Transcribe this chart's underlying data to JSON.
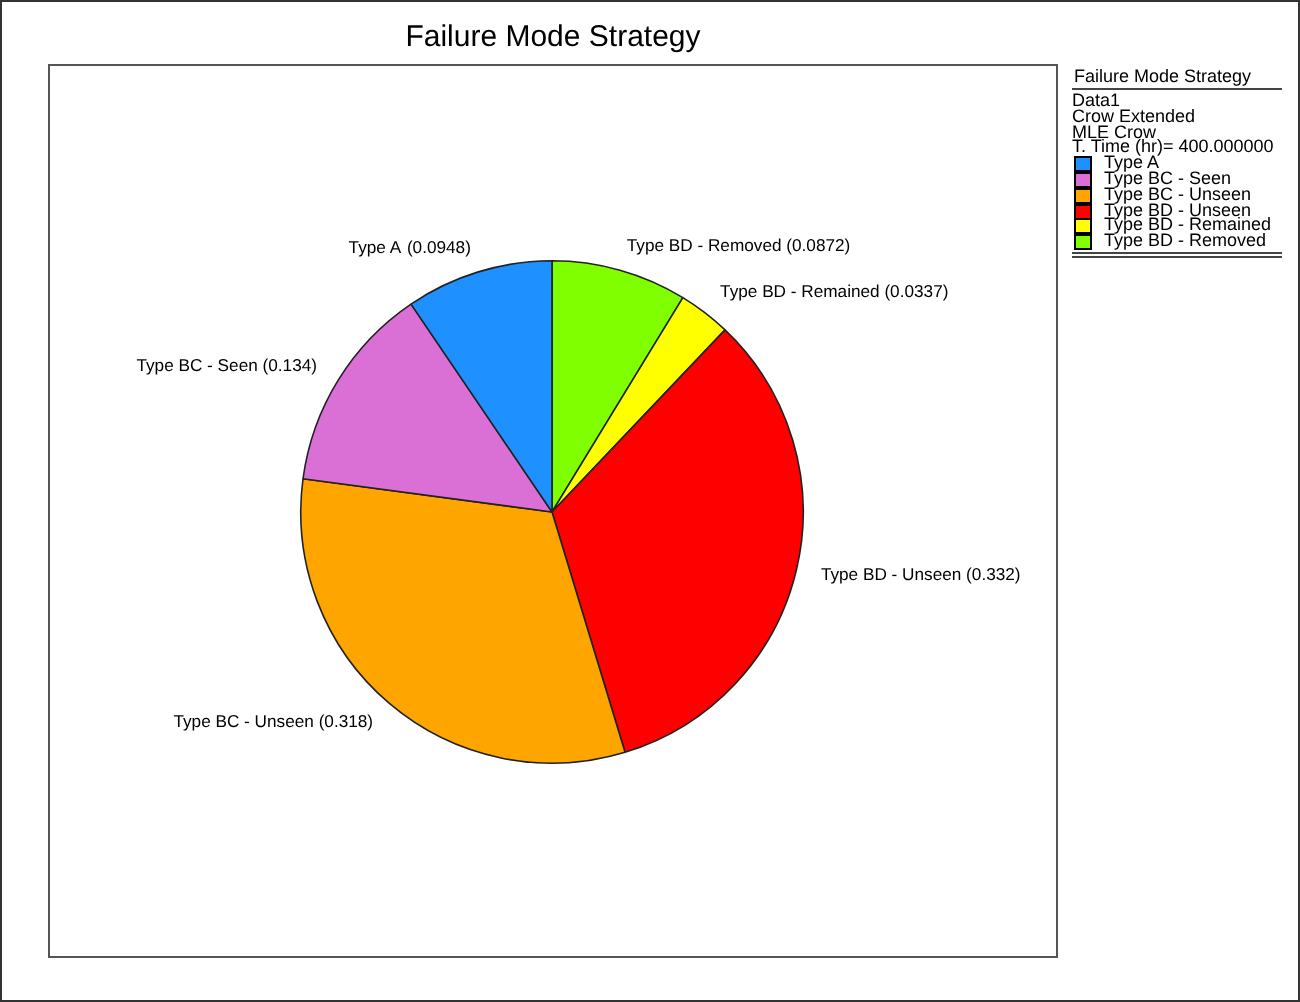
{
  "chart_data": {
    "type": "pie",
    "title": "Failure Mode Strategy",
    "legend_title": "Failure Mode Strategy",
    "annotations": [
      "Data1",
      "Crow Extended",
      "MLE Crow",
      "T. Time (hr)= 400.000000"
    ],
    "categories": [
      "Type BD - Removed",
      "Type BD - Remained",
      "Type BD - Unseen",
      "Type BC - Unseen",
      "Type BC - Seen",
      "Type A"
    ],
    "values": [
      0.0872,
      0.0337,
      0.332,
      0.318,
      0.134,
      0.0948
    ],
    "value_labels": [
      "(0.0872)",
      "(0.0337)",
      "(0.332)",
      "(0.318)",
      "(0.134)",
      "(0.0948)"
    ],
    "colors": [
      "#7fff00",
      "#ffff00",
      "#ff0000",
      "#ffa500",
      "#da70d6",
      "#1e90ff"
    ],
    "legend": "right"
  }
}
